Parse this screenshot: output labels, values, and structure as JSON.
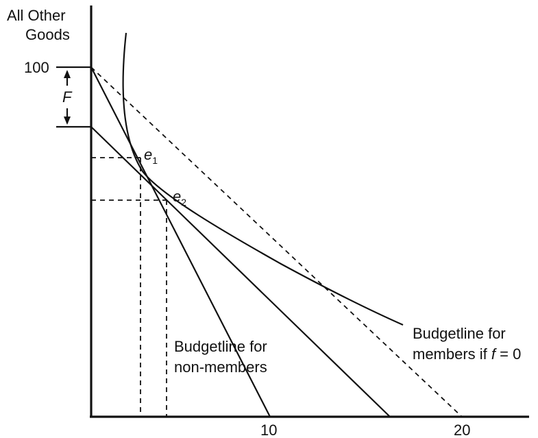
{
  "y_axis_label": [
    "All Other",
    "Goods"
  ],
  "y_tick_100": "100",
  "fee_label": "F",
  "x_tick_10": "10",
  "x_tick_20": "20",
  "points": [
    {
      "letter": "e",
      "sub": "1"
    },
    {
      "letter": "e",
      "sub": "2"
    }
  ],
  "non_member_label": [
    "Budgetline for",
    "non-members"
  ],
  "member_label_line1": "Budgetline for",
  "member_label_line2_prefix": "members if ",
  "member_label_line2_var": "f",
  "member_label_line2_suffix": " = 0"
}
